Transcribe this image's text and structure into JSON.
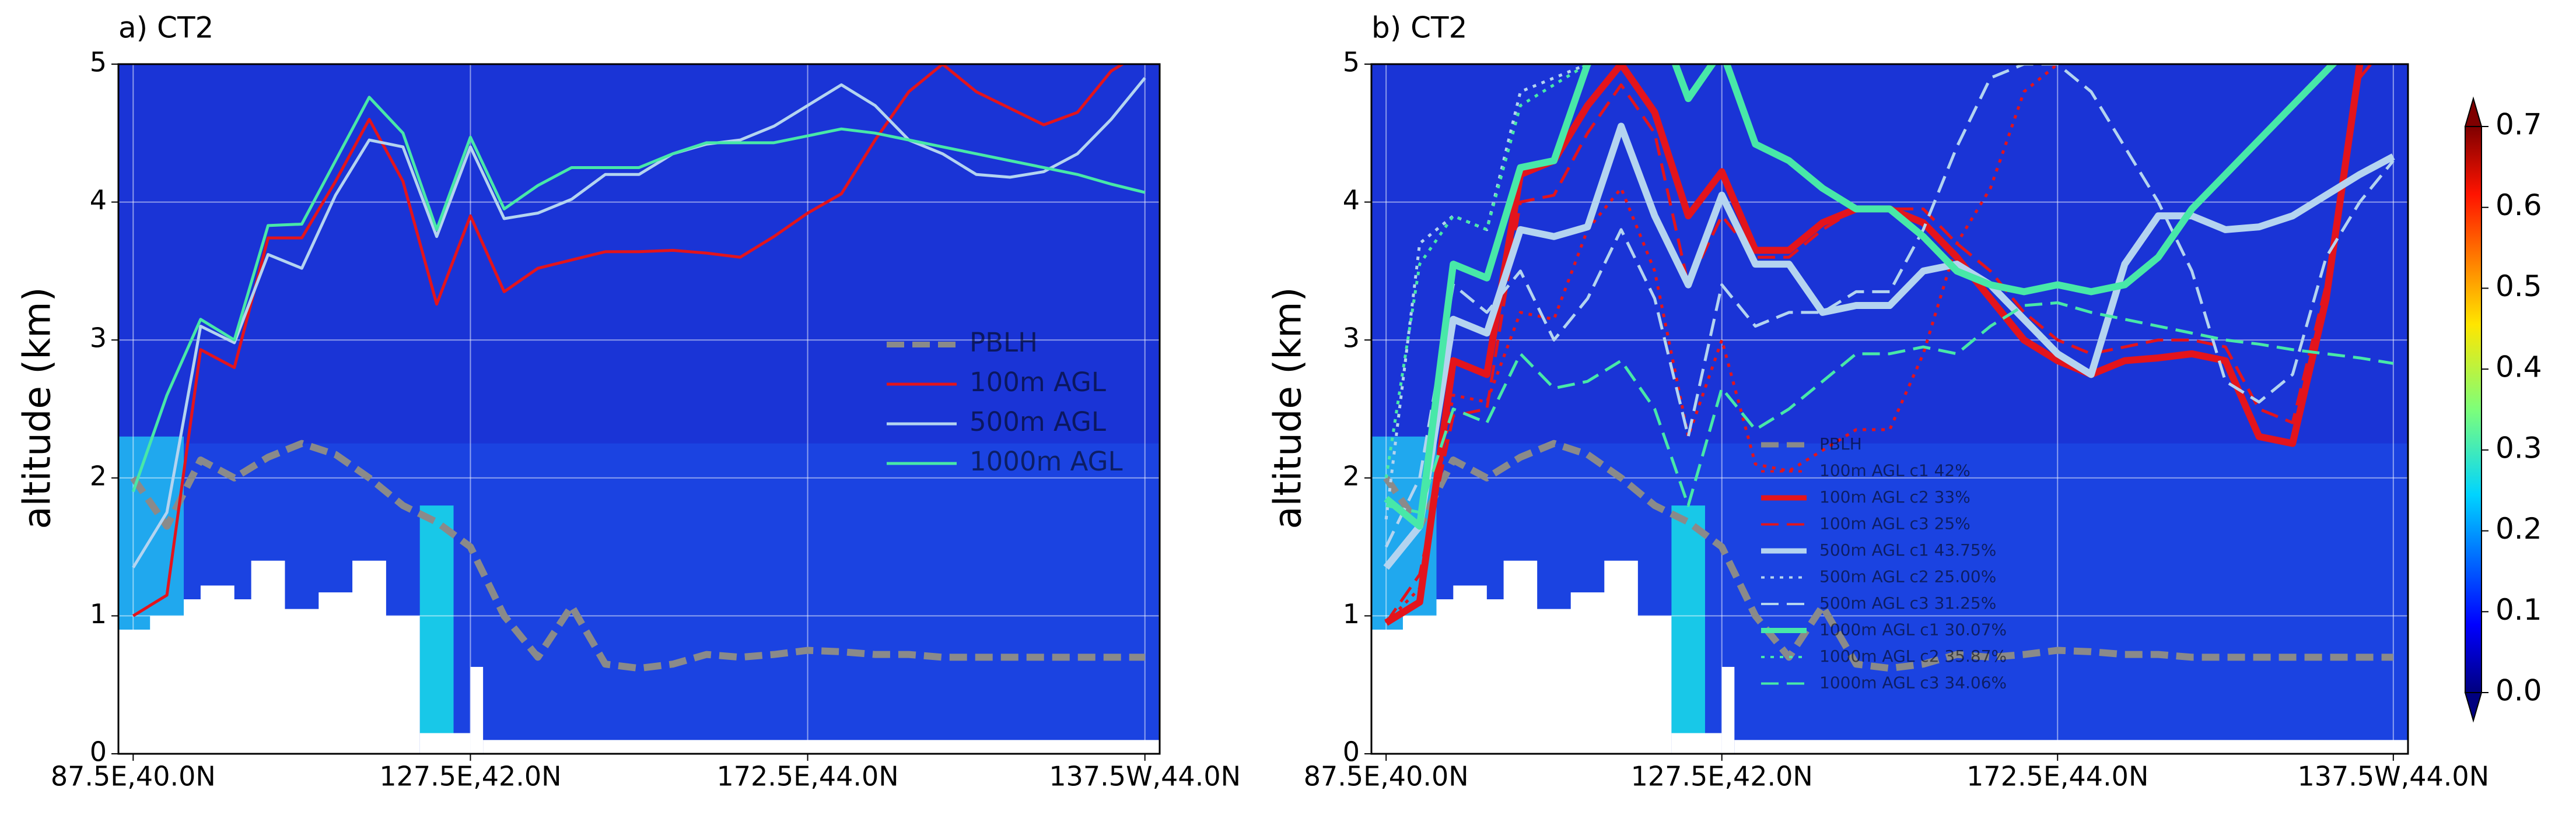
{
  "chart_data": [
    {
      "type": "line",
      "title": "a) CT2",
      "ylabel": "altitude (km)",
      "x": [
        0,
        4,
        8,
        12,
        16,
        20,
        24,
        28,
        32,
        36,
        40,
        44,
        48,
        52,
        56,
        60,
        64,
        68,
        72,
        76,
        80,
        84,
        88,
        92,
        96,
        100,
        104,
        108,
        112,
        116,
        120
      ],
      "xlim": [
        -1.75,
        121.75
      ],
      "xticks": [
        {
          "value": 0,
          "label": "87.5E,40.0N"
        },
        {
          "value": 40,
          "label": "127.5E,42.0N"
        },
        {
          "value": 80,
          "label": "172.5E,44.0N"
        },
        {
          "value": 120,
          "label": "137.5W,44.0N"
        }
      ],
      "ylim": [
        0,
        5
      ],
      "yticks": [
        0,
        1,
        2,
        3,
        4,
        5
      ],
      "grid": true,
      "legend": "center right",
      "series": [
        {
          "name": "PBLH",
          "color": "#8a8a8a",
          "linestyle": "dashed",
          "thick": true,
          "values": [
            2.0,
            1.65,
            2.13,
            2.0,
            2.15,
            2.25,
            2.17,
            2.0,
            1.8,
            1.68,
            1.5,
            1.0,
            0.7,
            1.07,
            0.65,
            0.62,
            0.65,
            0.72,
            0.7,
            0.72,
            0.75,
            0.74,
            0.72,
            0.72,
            0.7,
            0.7,
            0.7,
            0.7,
            0.7,
            0.7,
            0.7
          ]
        },
        {
          "name": "100m AGL",
          "color": "#e3141c",
          "linestyle": "solid",
          "thick": false,
          "values": [
            1.0,
            1.15,
            2.93,
            2.8,
            3.74,
            3.74,
            4.15,
            4.6,
            4.15,
            3.26,
            3.9,
            3.35,
            3.52,
            3.58,
            3.64,
            3.64,
            3.65,
            3.63,
            3.6,
            3.75,
            3.92,
            4.06,
            4.45,
            4.8,
            5.0,
            4.8,
            4.68,
            4.56,
            4.65,
            4.95,
            5.1
          ]
        },
        {
          "name": "500m AGL",
          "color": "#b4d4f0",
          "linestyle": "solid",
          "thick": false,
          "values": [
            1.35,
            1.75,
            3.1,
            2.98,
            3.62,
            3.52,
            4.05,
            4.45,
            4.4,
            3.75,
            4.4,
            3.88,
            3.92,
            4.02,
            4.2,
            4.2,
            4.35,
            4.42,
            4.45,
            4.55,
            4.7,
            4.85,
            4.7,
            4.45,
            4.35,
            4.2,
            4.18,
            4.22,
            4.35,
            4.6,
            4.9
          ]
        },
        {
          "name": "1000m AGL",
          "color": "#48e8a8",
          "linestyle": "solid",
          "thick": false,
          "values": [
            1.9,
            2.6,
            3.15,
            3.0,
            3.83,
            3.84,
            4.3,
            4.76,
            4.5,
            3.8,
            4.47,
            3.95,
            4.12,
            4.25,
            4.25,
            4.25,
            4.35,
            4.43,
            4.43,
            4.43,
            4.48,
            4.53,
            4.5,
            4.45,
            4.4,
            4.35,
            4.3,
            4.25,
            4.2,
            4.13,
            4.07
          ]
        }
      ]
    },
    {
      "type": "line",
      "title": "b) CT2",
      "ylabel": "altitude (km)",
      "x": [
        0,
        4,
        8,
        12,
        16,
        20,
        24,
        28,
        32,
        36,
        40,
        44,
        48,
        52,
        56,
        60,
        64,
        68,
        72,
        76,
        80,
        84,
        88,
        92,
        96,
        100,
        104,
        108,
        112,
        116,
        120
      ],
      "xlim": [
        -1.75,
        121.75
      ],
      "xticks": [
        {
          "value": 0,
          "label": "87.5E,40.0N"
        },
        {
          "value": 40,
          "label": "127.5E,42.0N"
        },
        {
          "value": 80,
          "label": "172.5E,44.0N"
        },
        {
          "value": 120,
          "label": "137.5W,44.0N"
        }
      ],
      "ylim": [
        0,
        5
      ],
      "yticks": [
        0,
        1,
        2,
        3,
        4,
        5
      ],
      "grid": true,
      "legend": "lower center",
      "series": [
        {
          "name": "PBLH",
          "color": "#8a8a8a",
          "linestyle": "dashed",
          "thick": true,
          "values": [
            2.0,
            1.65,
            2.13,
            2.0,
            2.15,
            2.25,
            2.17,
            2.0,
            1.8,
            1.68,
            1.5,
            1.0,
            0.7,
            1.07,
            0.65,
            0.62,
            0.65,
            0.72,
            0.7,
            0.72,
            0.75,
            0.74,
            0.72,
            0.72,
            0.7,
            0.7,
            0.7,
            0.7,
            0.7,
            0.7,
            0.7
          ]
        },
        {
          "name": "100m AGL c1 42%",
          "color": "#e3141c",
          "linestyle": "dotted",
          "thick": false,
          "values": [
            0.95,
            1.2,
            2.6,
            2.55,
            3.2,
            3.15,
            3.8,
            4.1,
            3.5,
            2.3,
            3.0,
            2.1,
            2.05,
            2.2,
            2.35,
            2.35,
            2.9,
            3.7,
            4.1,
            4.8,
            5.0,
            null,
            null,
            null,
            null,
            null,
            null,
            null,
            null,
            null,
            null
          ]
        },
        {
          "name": "100m AGL c2 33%",
          "color": "#e3141c",
          "linestyle": "solid",
          "thick": true,
          "values": [
            0.95,
            1.1,
            2.85,
            2.75,
            4.2,
            4.3,
            4.7,
            5.0,
            4.65,
            3.9,
            4.22,
            3.65,
            3.65,
            3.85,
            3.95,
            3.95,
            3.85,
            3.6,
            3.3,
            3.0,
            2.85,
            2.75,
            2.85,
            2.87,
            2.9,
            2.85,
            2.3,
            2.25,
            3.3,
            5.0,
            5.4
          ]
        },
        {
          "name": "100m AGL c3 25%",
          "color": "#e3141c",
          "linestyle": "dashed",
          "thick": false,
          "values": [
            0.95,
            1.3,
            2.45,
            2.5,
            4.0,
            4.05,
            4.5,
            4.85,
            4.5,
            3.4,
            3.9,
            3.6,
            3.6,
            3.8,
            3.95,
            3.95,
            3.95,
            3.7,
            3.5,
            3.2,
            3.0,
            2.9,
            2.95,
            3.0,
            3.0,
            2.95,
            2.5,
            2.4,
            3.4,
            4.9,
            5.2
          ]
        },
        {
          "name": "500m AGL c1 43.75%",
          "color": "#b4d4f0",
          "linestyle": "solid",
          "thick": true,
          "values": [
            1.35,
            1.65,
            3.15,
            3.05,
            3.8,
            3.75,
            3.82,
            4.55,
            3.9,
            3.4,
            4.05,
            3.55,
            3.55,
            3.2,
            3.25,
            3.25,
            3.5,
            3.55,
            3.4,
            3.15,
            2.9,
            2.75,
            3.55,
            3.9,
            3.9,
            3.8,
            3.82,
            3.9,
            4.05,
            4.2,
            4.33
          ]
        },
        {
          "name": "500m AGL c2 25.00%",
          "color": "#b4d4f0",
          "linestyle": "dotted",
          "thick": false,
          "values": [
            1.7,
            3.7,
            3.9,
            3.8,
            4.8,
            4.9,
            5.0,
            null,
            null,
            null,
            null,
            null,
            null,
            null,
            null,
            null,
            null,
            null,
            null,
            null,
            null,
            null,
            null,
            null,
            null,
            null,
            null,
            null,
            null,
            null,
            null
          ]
        },
        {
          "name": "500m AGL c3 31.25%",
          "color": "#b4d4f0",
          "linestyle": "dashed",
          "thick": false,
          "values": [
            1.5,
            2.0,
            3.4,
            3.2,
            3.5,
            3.0,
            3.3,
            3.8,
            3.3,
            2.3,
            3.4,
            3.1,
            3.2,
            3.2,
            3.35,
            3.35,
            3.8,
            4.4,
            4.9,
            5.0,
            5.0,
            4.8,
            4.4,
            4.0,
            3.5,
            2.7,
            2.55,
            2.75,
            3.6,
            4.0,
            4.3
          ]
        },
        {
          "name": "1000m AGL c1 30.07%",
          "color": "#48e8a8",
          "linestyle": "solid",
          "thick": true,
          "values": [
            1.85,
            1.65,
            3.55,
            3.45,
            4.25,
            4.3,
            5.0,
            5.3,
            5.4,
            4.75,
            5.1,
            4.42,
            4.3,
            4.1,
            3.95,
            3.95,
            3.75,
            3.5,
            3.4,
            3.35,
            3.4,
            3.35,
            3.4,
            3.6,
            3.95,
            4.2,
            4.45,
            4.7,
            4.95,
            5.2,
            5.4
          ]
        },
        {
          "name": "1000m AGL c2 35.87%",
          "color": "#48e8a8",
          "linestyle": "dotted",
          "thick": false,
          "values": [
            2.0,
            3.55,
            3.9,
            3.8,
            4.7,
            4.85,
            5.0,
            null,
            null,
            null,
            null,
            null,
            null,
            null,
            null,
            null,
            null,
            null,
            null,
            null,
            null,
            null,
            null,
            null,
            null,
            null,
            null,
            null,
            null,
            null,
            null
          ]
        },
        {
          "name": "1000m AGL c3 34.06%",
          "color": "#48e8a8",
          "linestyle": "dashed",
          "thick": false,
          "values": [
            1.8,
            1.75,
            2.5,
            2.4,
            2.9,
            2.65,
            2.7,
            2.85,
            2.5,
            1.8,
            2.65,
            2.35,
            2.5,
            2.7,
            2.9,
            2.9,
            2.95,
            2.9,
            3.1,
            3.25,
            3.27,
            3.2,
            3.15,
            3.1,
            3.05,
            3.0,
            2.97,
            2.93,
            2.9,
            2.87,
            2.83
          ]
        }
      ],
      "colorbar": {
        "lim": [
          0,
          0.7
        ],
        "ticks": [
          {
            "value": 0,
            "label": "0.0"
          },
          0.1,
          0.2,
          0.3,
          0.4,
          0.5,
          0.6,
          0.7
        ]
      }
    }
  ]
}
